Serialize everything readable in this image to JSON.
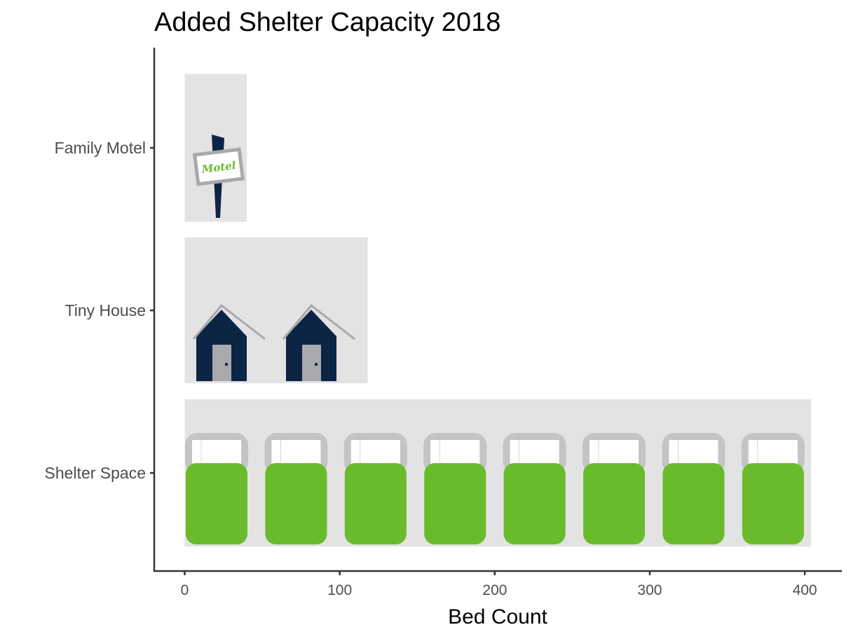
{
  "colors": {
    "panel_bg": "#e3e3e3",
    "bed_green": "#6abb2b",
    "bed_frame_gray": "#c4c4c4",
    "house_navy": "#0d2545",
    "roof_gray": "#a7a9ac",
    "door_gray": "#a7a9ac",
    "sign_gray": "#a7a9ac",
    "axis_dark": "#333333",
    "label_gray": "#4d4d4d"
  },
  "chart_data": {
    "type": "bar",
    "orientation": "horizontal",
    "title": "Added Shelter Capacity 2018",
    "xlabel": "Bed Count",
    "ylabel": "",
    "xlim": [
      -20,
      425
    ],
    "x_ticks": [
      0,
      100,
      200,
      300,
      400
    ],
    "categories": [
      "Shelter Space",
      "Tiny House",
      "Family Motel"
    ],
    "values": [
      404,
      118,
      40
    ],
    "icons": [
      {
        "category": "Shelter Space",
        "icon": "bed-icon",
        "count": 8
      },
      {
        "category": "Tiny House",
        "icon": "tiny-house-icon",
        "count": 2
      },
      {
        "category": "Family Motel",
        "icon": "motel-sign-icon",
        "count": 1,
        "text": "Motel"
      }
    ],
    "grid": false,
    "legend": "none"
  }
}
